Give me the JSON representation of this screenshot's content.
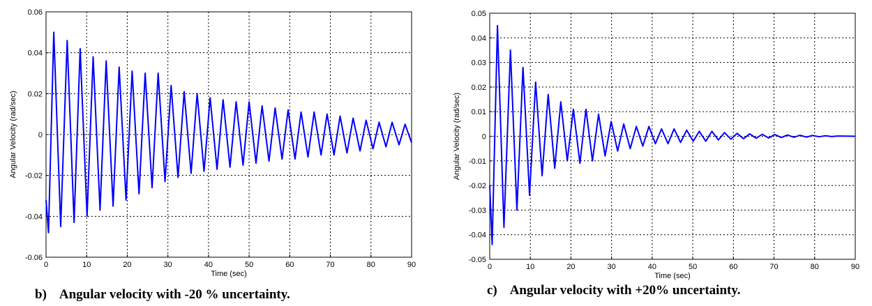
{
  "chart_data": [
    {
      "type": "line",
      "caption": "b)    Angular velocity with -20 % uncertainty.",
      "xlabel": "Time (sec)",
      "ylabel": "Angular Velocity (rad/sec)",
      "xlim": [
        0,
        90
      ],
      "ylim": [
        -0.06,
        0.06
      ],
      "xticks": [
        0,
        10,
        20,
        30,
        40,
        50,
        60,
        70,
        80,
        90
      ],
      "yticks": [
        -0.06,
        -0.04,
        -0.02,
        0,
        0.02,
        0.04,
        0.06
      ],
      "ytick_labels": [
        "-0.06",
        "-0.04",
        "-0.02",
        "0",
        "0.02",
        "0.04",
        "0.06"
      ],
      "grid": true,
      "series": [
        {
          "color": "#0000ff",
          "x": [
            0,
            0.6,
            1.9,
            3.6,
            5.2,
            6.9,
            8.4,
            10.1,
            11.6,
            13.3,
            14.8,
            16.5,
            18.0,
            19.7,
            21.2,
            22.9,
            24.4,
            26.1,
            27.6,
            29.3,
            30.8,
            32.5,
            34.0,
            35.7,
            37.2,
            38.9,
            40.4,
            42.1,
            43.6,
            45.3,
            46.8,
            48.5,
            50.0,
            51.7,
            53.2,
            54.9,
            56.4,
            58.1,
            59.6,
            61.3,
            62.8,
            64.5,
            66.0,
            67.7,
            69.2,
            70.9,
            72.4,
            74.1,
            75.6,
            77.3,
            78.8,
            80.5,
            82.0,
            83.7,
            85.2,
            86.9,
            88.4,
            90.0
          ],
          "y": [
            -0.032,
            -0.048,
            0.05,
            -0.045,
            0.046,
            -0.043,
            0.042,
            -0.04,
            0.038,
            -0.037,
            0.036,
            -0.035,
            0.033,
            -0.032,
            0.031,
            -0.029,
            0.03,
            -0.026,
            0.03,
            -0.023,
            0.024,
            -0.021,
            0.021,
            -0.019,
            0.02,
            -0.018,
            0.018,
            -0.017,
            0.017,
            -0.016,
            0.016,
            -0.015,
            0.016,
            -0.014,
            0.014,
            -0.013,
            0.013,
            -0.012,
            0.012,
            -0.012,
            0.011,
            -0.011,
            0.011,
            -0.01,
            0.01,
            -0.01,
            0.009,
            -0.009,
            0.008,
            -0.008,
            0.007,
            -0.007,
            0.006,
            -0.006,
            0.006,
            -0.005,
            0.005,
            -0.004
          ]
        }
      ]
    },
    {
      "type": "line",
      "caption": "c)    Angular velocity with +20% uncertainty.",
      "xlabel": "Time (sec)",
      "ylabel": "Angular Velocity (rad/sec)",
      "xlim": [
        0,
        90
      ],
      "ylim": [
        -0.05,
        0.05
      ],
      "xticks": [
        0,
        10,
        20,
        30,
        40,
        50,
        60,
        70,
        80,
        90
      ],
      "yticks": [
        -0.05,
        -0.04,
        -0.03,
        -0.02,
        -0.01,
        0,
        0.01,
        0.02,
        0.03,
        0.04,
        0.05
      ],
      "ytick_labels": [
        "-0.05",
        "-0.04",
        "-0.03",
        "-0.02",
        "-0.01",
        "0",
        "0.01",
        "0.02",
        "0.03",
        "0.04",
        "0.05"
      ],
      "grid": true,
      "series": [
        {
          "color": "#0000ff",
          "x": [
            0,
            0.6,
            1.9,
            3.5,
            5.1,
            6.7,
            8.2,
            9.8,
            11.3,
            12.9,
            14.4,
            16.0,
            17.5,
            19.1,
            20.6,
            22.2,
            23.7,
            25.3,
            26.8,
            28.4,
            29.9,
            31.5,
            33.0,
            34.6,
            36.1,
            37.7,
            39.2,
            40.8,
            42.3,
            43.9,
            45.4,
            47.0,
            48.5,
            50.1,
            51.6,
            53.2,
            54.7,
            56.3,
            57.8,
            59.4,
            60.9,
            62.5,
            64.0,
            65.6,
            67.1,
            68.7,
            70.2,
            71.8,
            73.3,
            74.9,
            76.4,
            78.0,
            79.5,
            81.1,
            82.6,
            84.2,
            85.7,
            90.0
          ],
          "y": [
            -0.02,
            -0.044,
            0.045,
            -0.037,
            0.035,
            -0.03,
            0.028,
            -0.024,
            0.022,
            -0.016,
            0.017,
            -0.013,
            0.014,
            -0.01,
            0.011,
            -0.011,
            0.011,
            -0.01,
            0.009,
            -0.008,
            0.006,
            -0.006,
            0.005,
            -0.005,
            0.004,
            -0.004,
            0.004,
            -0.003,
            0.003,
            -0.003,
            0.003,
            -0.0025,
            0.0025,
            -0.002,
            0.002,
            -0.002,
            0.002,
            -0.0015,
            0.0015,
            -0.0012,
            0.0012,
            -0.001,
            0.001,
            -0.0008,
            0.0008,
            -0.0007,
            0.0007,
            -0.0005,
            0.0005,
            -0.0004,
            0.0004,
            -0.0003,
            0.0003,
            -0.0002,
            0.0002,
            -0.0001,
            0.0001,
            0.0
          ]
        }
      ]
    }
  ]
}
